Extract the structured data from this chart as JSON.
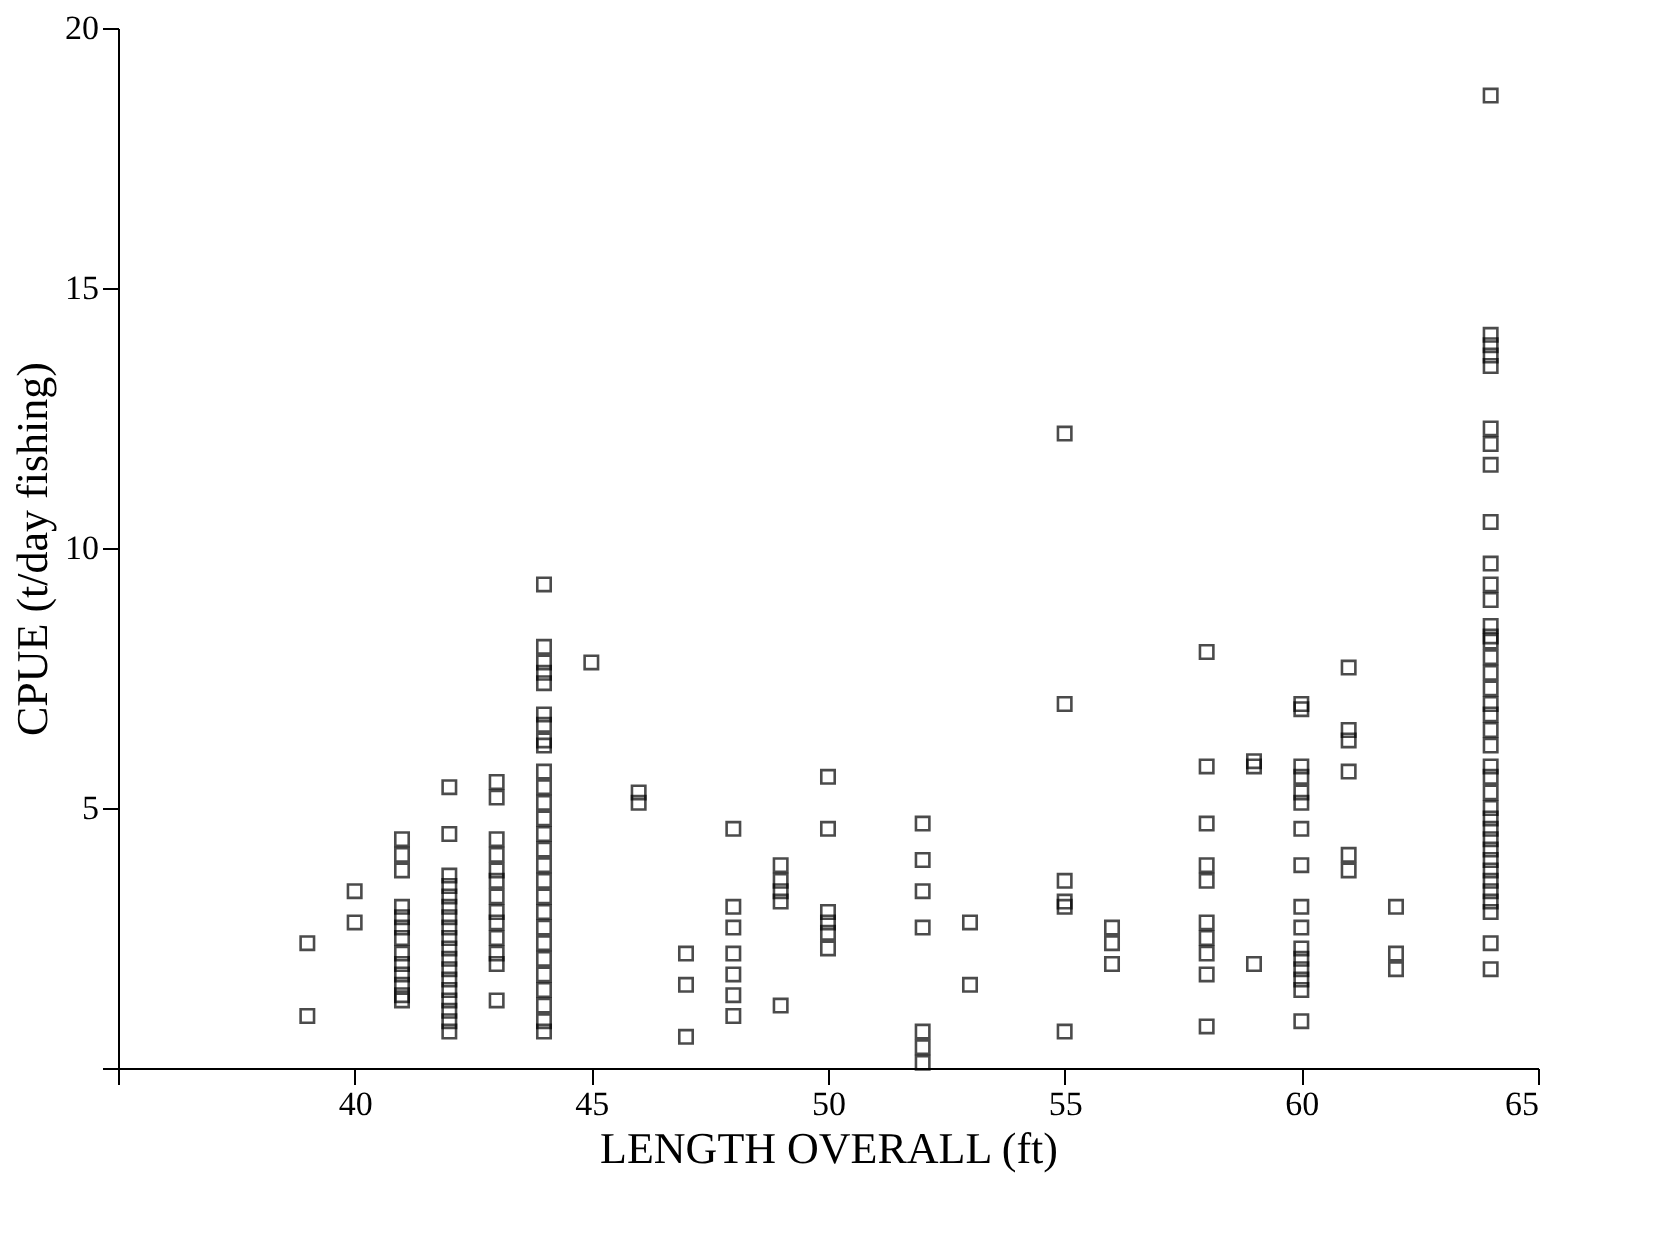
{
  "chart_data": {
    "type": "scatter",
    "xlabel": "LENGTH OVERALL (ft)",
    "ylabel": "CPUE (t/day fishing)",
    "xlim": [
      35,
      65
    ],
    "xticks": [
      {
        "value": 35,
        "label": null
      },
      40,
      45,
      50,
      55,
      60,
      65
    ],
    "ylim": [
      0,
      20
    ],
    "yticks": [
      {
        "value": 0,
        "label": null
      },
      5,
      10,
      15,
      20
    ],
    "grid": false,
    "marker": "square",
    "series": [
      {
        "color": "#000000",
        "x": [
          39,
          39,
          40,
          40,
          41,
          41,
          41,
          41,
          41,
          41,
          41,
          41,
          41,
          41,
          41,
          41,
          41,
          42,
          42,
          42,
          42,
          42,
          42,
          42,
          42,
          42,
          42,
          42,
          42,
          42,
          42,
          42,
          42,
          42,
          42,
          43,
          43,
          43,
          43,
          43,
          43,
          43,
          43,
          43,
          43,
          43,
          43,
          43,
          44,
          44,
          44,
          44,
          44,
          44,
          44,
          44,
          44,
          44,
          44,
          44,
          44,
          44,
          44,
          44,
          44,
          44,
          44,
          44,
          44,
          44,
          44,
          44,
          44,
          44,
          44,
          45,
          46,
          46,
          47,
          47,
          47,
          48,
          48,
          48,
          48,
          48,
          48,
          48,
          49,
          49,
          49,
          49,
          49,
          50,
          50,
          50,
          50,
          50,
          50,
          52,
          52,
          52,
          52,
          52,
          52,
          52,
          53,
          53,
          55,
          55,
          55,
          55,
          55,
          55,
          56,
          56,
          56,
          58,
          58,
          58,
          58,
          58,
          58,
          58,
          58,
          58,
          58,
          59,
          59,
          59,
          60,
          60,
          60,
          60,
          60,
          60,
          60,
          60,
          60,
          60,
          60,
          60,
          60,
          60,
          60,
          60,
          61,
          61,
          61,
          61,
          61,
          61,
          62,
          62,
          62,
          64,
          64,
          64,
          64,
          64,
          64,
          64,
          64,
          64,
          64,
          64,
          64,
          64,
          64,
          64,
          64,
          64,
          64,
          64,
          64,
          64,
          64,
          64,
          64,
          64,
          64,
          64,
          64,
          64,
          64,
          64,
          64,
          64,
          64,
          64,
          64,
          64,
          64
        ],
        "values": [
          2.4,
          1.0,
          3.4,
          2.8,
          4.4,
          4.1,
          3.8,
          3.1,
          2.9,
          2.7,
          2.5,
          2.2,
          2.0,
          1.8,
          1.6,
          1.4,
          1.3,
          5.4,
          4.5,
          3.7,
          3.5,
          3.3,
          3.1,
          2.9,
          2.7,
          2.5,
          2.3,
          2.1,
          1.9,
          1.7,
          1.5,
          1.3,
          1.1,
          0.9,
          0.7,
          5.5,
          5.2,
          4.4,
          4.1,
          3.8,
          3.6,
          3.3,
          3.0,
          2.8,
          2.5,
          2.2,
          2.0,
          1.3,
          9.3,
          8.1,
          7.8,
          7.6,
          7.4,
          6.8,
          6.6,
          6.3,
          5.7,
          5.4,
          5.1,
          4.8,
          4.5,
          4.2,
          3.9,
          3.6,
          3.3,
          3.0,
          2.7,
          2.4,
          2.1,
          1.8,
          1.5,
          1.2,
          0.9,
          0.7,
          6.2,
          7.8,
          5.3,
          5.1,
          2.2,
          1.6,
          0.6,
          4.6,
          3.1,
          2.7,
          2.2,
          1.8,
          1.4,
          1.0,
          3.9,
          3.6,
          3.4,
          3.2,
          1.2,
          5.6,
          4.6,
          3.0,
          2.8,
          2.6,
          2.3,
          4.7,
          4.0,
          3.4,
          2.7,
          0.7,
          0.4,
          0.1,
          2.8,
          1.6,
          12.2,
          7.0,
          3.6,
          3.2,
          3.1,
          0.7,
          2.7,
          2.4,
          2.0,
          8.0,
          5.8,
          4.7,
          3.9,
          3.6,
          2.8,
          2.5,
          2.2,
          1.8,
          0.8,
          5.9,
          5.8,
          2.0,
          7.0,
          6.9,
          5.8,
          5.6,
          5.3,
          5.1,
          4.6,
          3.9,
          3.1,
          2.7,
          2.3,
          2.1,
          1.9,
          1.7,
          1.5,
          0.9,
          7.7,
          6.5,
          6.3,
          5.7,
          4.1,
          3.8,
          3.1,
          2.2,
          1.9,
          18.7,
          14.1,
          13.9,
          13.7,
          13.5,
          12.3,
          12.0,
          11.6,
          10.5,
          9.7,
          9.3,
          9.0,
          8.5,
          8.3,
          8.2,
          7.9,
          7.6,
          7.3,
          7.0,
          6.8,
          6.5,
          6.2,
          5.8,
          5.6,
          5.3,
          5.0,
          4.8,
          4.6,
          4.4,
          4.2,
          4.0,
          3.8,
          3.6,
          3.4,
          3.2,
          3.0,
          2.4,
          1.9
        ]
      }
    ]
  }
}
